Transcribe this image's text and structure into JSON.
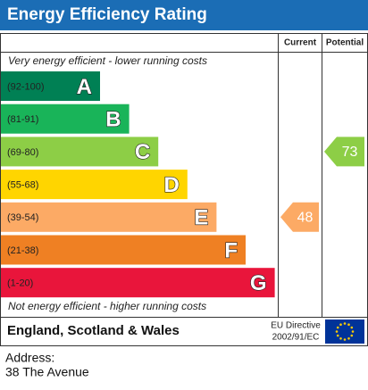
{
  "title": "Energy Efficiency Rating",
  "headers": {
    "current": "Current",
    "potential": "Potential"
  },
  "top_text": "Very energy efficient - lower running costs",
  "bottom_text": "Not energy efficient - higher running costs",
  "bands": [
    {
      "range": "(92-100)",
      "letter": "A",
      "color": "#008054"
    },
    {
      "range": "(81-91)",
      "letter": "B",
      "color": "#19b459"
    },
    {
      "range": "(69-80)",
      "letter": "C",
      "color": "#8dce46"
    },
    {
      "range": "(55-68)",
      "letter": "D",
      "color": "#ffd500"
    },
    {
      "range": "(39-54)",
      "letter": "E",
      "color": "#fcaa65"
    },
    {
      "range": "(21-38)",
      "letter": "F",
      "color": "#ef8023"
    },
    {
      "range": "(1-20)",
      "letter": "G",
      "color": "#e9153b"
    }
  ],
  "current": 48,
  "potential": 73,
  "footer": {
    "region": "England, Scotland & Wales",
    "directive_line1": "EU Directive",
    "directive_line2": "2002/91/EC"
  },
  "address": {
    "label": "Address:",
    "value": "38 The Avenue"
  }
}
